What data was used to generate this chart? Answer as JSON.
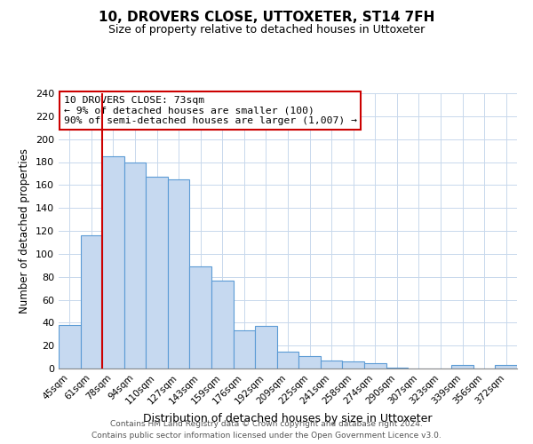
{
  "title": "10, DROVERS CLOSE, UTTOXETER, ST14 7FH",
  "subtitle": "Size of property relative to detached houses in Uttoxeter",
  "xlabel": "Distribution of detached houses by size in Uttoxeter",
  "ylabel": "Number of detached properties",
  "bar_labels": [
    "45sqm",
    "61sqm",
    "78sqm",
    "94sqm",
    "110sqm",
    "127sqm",
    "143sqm",
    "159sqm",
    "176sqm",
    "192sqm",
    "209sqm",
    "225sqm",
    "241sqm",
    "258sqm",
    "274sqm",
    "290sqm",
    "307sqm",
    "323sqm",
    "339sqm",
    "356sqm",
    "372sqm"
  ],
  "bar_values": [
    38,
    116,
    185,
    180,
    167,
    165,
    89,
    77,
    33,
    37,
    15,
    11,
    7,
    6,
    5,
    1,
    0,
    0,
    3,
    0,
    3
  ],
  "bar_color": "#c6d9f0",
  "bar_edge_color": "#5b9bd5",
  "vline_color": "#cc0000",
  "ylim": [
    0,
    240
  ],
  "yticks": [
    0,
    20,
    40,
    60,
    80,
    100,
    120,
    140,
    160,
    180,
    200,
    220,
    240
  ],
  "annotation_title": "10 DROVERS CLOSE: 73sqm",
  "annotation_line1": "← 9% of detached houses are smaller (100)",
  "annotation_line2": "90% of semi-detached houses are larger (1,007) →",
  "annotation_box_color": "#ffffff",
  "annotation_box_edge": "#cc0000",
  "footer_line1": "Contains HM Land Registry data © Crown copyright and database right 2024.",
  "footer_line2": "Contains public sector information licensed under the Open Government Licence v3.0.",
  "background_color": "#ffffff",
  "grid_color": "#c8d8ec"
}
